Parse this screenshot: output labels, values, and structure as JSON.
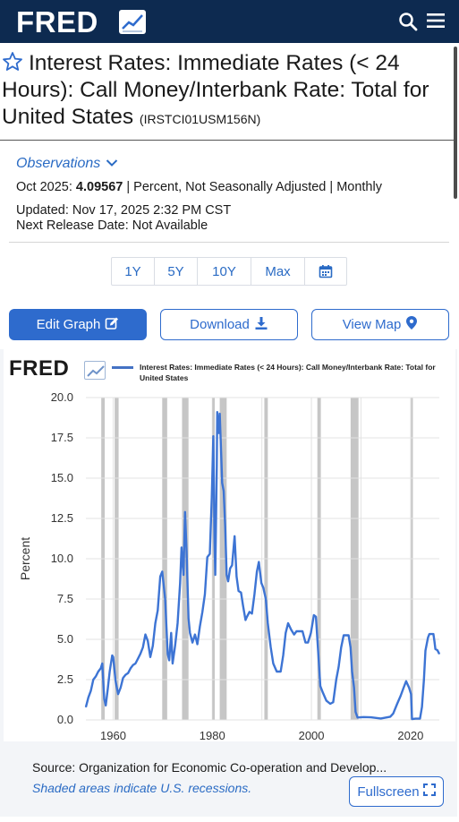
{
  "header": {
    "logo_text": "FRED",
    "logo_icon": "fred-chart-logo-icon",
    "search_icon": "search-icon",
    "menu_icon": "hamburger-menu-icon",
    "bg_color": "#0d2a50"
  },
  "series": {
    "title": "Interest Rates: Immediate Rates (< 24 Hours): Call Money/Interbank Rate: Total for United States",
    "id_text": "(IRSTCI01USM156N)",
    "favorite_icon": "star-outline-icon"
  },
  "observations": {
    "link_label": "Observations",
    "date_label": "Oct 2025:",
    "value": "4.09567",
    "details": "| Percent, Not Seasonally Adjusted | Monthly",
    "updated": "Updated: Nov 17, 2025 2:32 PM CST",
    "next_release": "Next Release Date: Not Available"
  },
  "range_buttons": [
    "1Y",
    "5Y",
    "10Y",
    "Max"
  ],
  "actions": {
    "edit_graph": "Edit Graph",
    "download": "Download",
    "view_map": "View Map"
  },
  "graph": {
    "logo_text": "FRED",
    "legend_label": "Interest Rates: Immediate Rates (< 24 Hours): Call Money/Interbank Rate: Total for United States",
    "source": "Source: Organization for Economic Co-operation and Develop...",
    "recession_note": "Shaded areas indicate U.S. recessions.",
    "fullscreen_label": "Fullscreen"
  },
  "colors": {
    "accent": "#2e6bcd",
    "line": "#3d74d4",
    "recession": "#c6c6c6",
    "link": "#2a6bc4"
  },
  "chart_data": {
    "type": "line",
    "title": "",
    "ylabel": "Percent",
    "xlabel": "",
    "xlim": [
      1954.5,
      2025.8
    ],
    "ylim": [
      0,
      20
    ],
    "y_ticks": [
      "0.0",
      "2.5",
      "5.0",
      "7.5",
      "10.0",
      "12.5",
      "15.0",
      "17.5",
      "20.0"
    ],
    "x_ticks": [
      "1960",
      "1980",
      "2000",
      "2020"
    ],
    "grid": true,
    "legend_position": "top",
    "recessions": [
      [
        1957.6,
        1958.3
      ],
      [
        1960.3,
        1961.1
      ],
      [
        1969.9,
        1970.9
      ],
      [
        1973.9,
        1975.2
      ],
      [
        1980.0,
        1980.5
      ],
      [
        1981.5,
        1982.9
      ],
      [
        1990.5,
        1991.2
      ],
      [
        2001.2,
        2001.9
      ],
      [
        2007.9,
        2009.5
      ],
      [
        2020.1,
        2020.4
      ]
    ],
    "series": [
      {
        "name": "Interest Rates: Immediate Rates (< 24 Hours): Call Money/Interbank Rate: Total for United States",
        "points": [
          [
            1954.5,
            0.8
          ],
          [
            1955.0,
            1.4
          ],
          [
            1955.5,
            1.8
          ],
          [
            1956.0,
            2.5
          ],
          [
            1956.5,
            2.7
          ],
          [
            1957.0,
            3.0
          ],
          [
            1957.5,
            3.2
          ],
          [
            1957.8,
            3.5
          ],
          [
            1958.2,
            1.3
          ],
          [
            1958.5,
            0.9
          ],
          [
            1958.9,
            1.9
          ],
          [
            1959.3,
            3.0
          ],
          [
            1959.8,
            4.0
          ],
          [
            1960.0,
            3.9
          ],
          [
            1960.5,
            2.4
          ],
          [
            1961.0,
            1.6
          ],
          [
            1961.5,
            2.0
          ],
          [
            1962.0,
            2.6
          ],
          [
            1962.5,
            2.8
          ],
          [
            1963.0,
            2.9
          ],
          [
            1963.5,
            3.2
          ],
          [
            1964.0,
            3.4
          ],
          [
            1964.5,
            3.5
          ],
          [
            1965.0,
            3.8
          ],
          [
            1965.5,
            4.1
          ],
          [
            1966.0,
            4.5
          ],
          [
            1966.5,
            5.3
          ],
          [
            1967.0,
            4.9
          ],
          [
            1967.5,
            3.9
          ],
          [
            1968.0,
            4.6
          ],
          [
            1968.5,
            6.0
          ],
          [
            1969.0,
            6.8
          ],
          [
            1969.5,
            8.9
          ],
          [
            1969.9,
            9.2
          ],
          [
            1970.5,
            7.5
          ],
          [
            1971.0,
            4.1
          ],
          [
            1971.3,
            3.7
          ],
          [
            1971.7,
            5.4
          ],
          [
            1972.0,
            3.5
          ],
          [
            1972.5,
            4.6
          ],
          [
            1973.0,
            6.0
          ],
          [
            1973.5,
            8.5
          ],
          [
            1973.8,
            10.7
          ],
          [
            1974.2,
            9.0
          ],
          [
            1974.5,
            12.9
          ],
          [
            1974.8,
            10.5
          ],
          [
            1975.2,
            6.3
          ],
          [
            1975.5,
            5.4
          ],
          [
            1976.0,
            4.8
          ],
          [
            1976.5,
            5.3
          ],
          [
            1977.0,
            4.7
          ],
          [
            1977.5,
            5.8
          ],
          [
            1978.0,
            6.7
          ],
          [
            1978.5,
            7.8
          ],
          [
            1979.0,
            10.1
          ],
          [
            1979.5,
            10.3
          ],
          [
            1979.9,
            13.8
          ],
          [
            1980.2,
            17.6
          ],
          [
            1980.45,
            11.0
          ],
          [
            1980.6,
            9.0
          ],
          [
            1980.9,
            15.8
          ],
          [
            1981.0,
            19.1
          ],
          [
            1981.3,
            17.8
          ],
          [
            1981.5,
            19.0
          ],
          [
            1981.8,
            16.5
          ],
          [
            1982.0,
            14.7
          ],
          [
            1982.3,
            14.2
          ],
          [
            1982.6,
            12.0
          ],
          [
            1982.9,
            9.0
          ],
          [
            1983.2,
            8.6
          ],
          [
            1983.6,
            9.4
          ],
          [
            1984.0,
            9.6
          ],
          [
            1984.5,
            11.4
          ],
          [
            1984.9,
            8.9
          ],
          [
            1985.3,
            8.0
          ],
          [
            1985.8,
            7.9
          ],
          [
            1986.2,
            7.1
          ],
          [
            1986.7,
            6.2
          ],
          [
            1987.0,
            6.4
          ],
          [
            1987.5,
            6.7
          ],
          [
            1988.0,
            6.6
          ],
          [
            1988.5,
            7.8
          ],
          [
            1989.0,
            9.2
          ],
          [
            1989.4,
            9.8
          ],
          [
            1989.9,
            8.5
          ],
          [
            1990.3,
            8.2
          ],
          [
            1990.8,
            7.5
          ],
          [
            1991.2,
            6.0
          ],
          [
            1991.8,
            4.5
          ],
          [
            1992.3,
            3.5
          ],
          [
            1993.0,
            3.0
          ],
          [
            1993.8,
            3.0
          ],
          [
            1994.3,
            4.0
          ],
          [
            1994.8,
            5.4
          ],
          [
            1995.3,
            6.0
          ],
          [
            1995.9,
            5.6
          ],
          [
            1996.5,
            5.3
          ],
          [
            1997.0,
            5.5
          ],
          [
            1997.5,
            5.5
          ],
          [
            1998.2,
            5.5
          ],
          [
            1998.8,
            4.8
          ],
          [
            1999.3,
            4.8
          ],
          [
            1999.9,
            5.4
          ],
          [
            2000.5,
            6.5
          ],
          [
            2000.9,
            6.4
          ],
          [
            2001.3,
            4.5
          ],
          [
            2001.8,
            2.1
          ],
          [
            2002.3,
            1.7
          ],
          [
            2003.0,
            1.2
          ],
          [
            2003.8,
            1.0
          ],
          [
            2004.4,
            1.1
          ],
          [
            2005.0,
            2.5
          ],
          [
            2005.5,
            3.3
          ],
          [
            2006.0,
            4.5
          ],
          [
            2006.5,
            5.25
          ],
          [
            2007.5,
            5.25
          ],
          [
            2007.9,
            4.5
          ],
          [
            2008.2,
            3.0
          ],
          [
            2008.6,
            2.0
          ],
          [
            2008.9,
            0.5
          ],
          [
            2009.3,
            0.15
          ],
          [
            2010.5,
            0.18
          ],
          [
            2012.0,
            0.16
          ],
          [
            2014.0,
            0.09
          ],
          [
            2015.9,
            0.2
          ],
          [
            2016.5,
            0.4
          ],
          [
            2017.3,
            1.0
          ],
          [
            2018.0,
            1.5
          ],
          [
            2018.6,
            2.0
          ],
          [
            2019.1,
            2.4
          ],
          [
            2019.7,
            2.0
          ],
          [
            2020.1,
            1.6
          ],
          [
            2020.3,
            0.05
          ],
          [
            2021.0,
            0.08
          ],
          [
            2021.9,
            0.08
          ],
          [
            2022.3,
            0.8
          ],
          [
            2022.7,
            2.5
          ],
          [
            2023.0,
            4.3
          ],
          [
            2023.5,
            5.1
          ],
          [
            2023.8,
            5.33
          ],
          [
            2024.6,
            5.33
          ],
          [
            2024.8,
            4.9
          ],
          [
            2025.0,
            4.4
          ],
          [
            2025.4,
            4.33
          ],
          [
            2025.8,
            4.09567
          ]
        ]
      }
    ]
  }
}
